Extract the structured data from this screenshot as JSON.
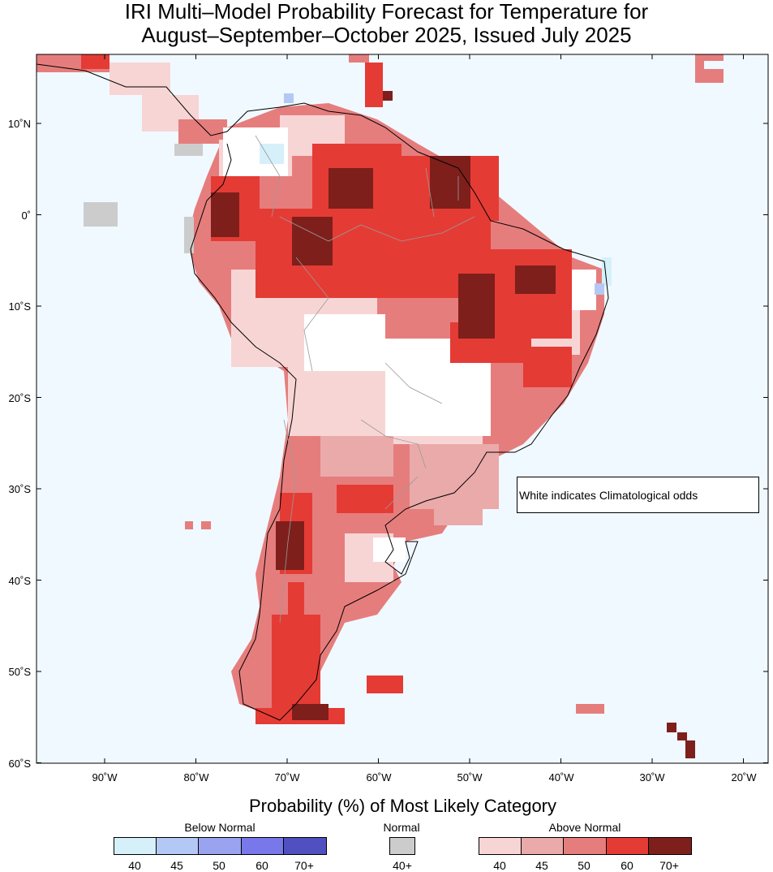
{
  "title": {
    "line1": "IRI Multi–Model Probability Forecast for Temperature for",
    "line2": "August–September–October 2025, Issued July 2025"
  },
  "axes": {
    "lat_labels": [
      "10˚N",
      "0˚",
      "10˚S",
      "20˚S",
      "30˚S",
      "40˚S",
      "50˚S",
      "60˚S"
    ],
    "lon_labels": [
      "90˚W",
      "80˚W",
      "70˚W",
      "60˚W",
      "50˚W",
      "40˚W",
      "30˚W",
      "20˚W"
    ],
    "lat_values": [
      10,
      0,
      -10,
      -20,
      -30,
      -40,
      -50,
      -60
    ],
    "lon_values": [
      -90,
      -80,
      -70,
      -60,
      -50,
      -40,
      -30,
      -20
    ]
  },
  "note": "White indicates Climatological odds",
  "colors": {
    "ocean": "#f0f9ff",
    "land_white": "#ffffff",
    "above_40": "#f8d5d5",
    "above_45": "#eaaaaa",
    "above_50": "#e67d7d",
    "above_60": "#e53b35",
    "above_70": "#7e1f1b",
    "below_40": "#d6f0fa",
    "below_45": "#b4c8f5",
    "below_50": "#9aa3f0",
    "below_60": "#7878ea",
    "below_70": "#5050c0",
    "normal": "#cccccc"
  },
  "legend": {
    "title": "Probability (%) of Most Likely Category",
    "below": {
      "label": "Below Normal",
      "ticks": [
        "40",
        "45",
        "50",
        "60",
        "70+"
      ],
      "colors": [
        "#d6f0fa",
        "#b4c8f5",
        "#9aa3f0",
        "#7878ea",
        "#5050c0"
      ]
    },
    "normal": {
      "label": "Normal",
      "ticks": [
        "40+"
      ],
      "colors": [
        "#cccccc"
      ]
    },
    "above": {
      "label": "Above Normal",
      "ticks": [
        "40",
        "45",
        "50",
        "60",
        "70+"
      ],
      "colors": [
        "#f8d5d5",
        "#eaaaaa",
        "#e67d7d",
        "#e53b35",
        "#7e1f1b"
      ]
    }
  }
}
